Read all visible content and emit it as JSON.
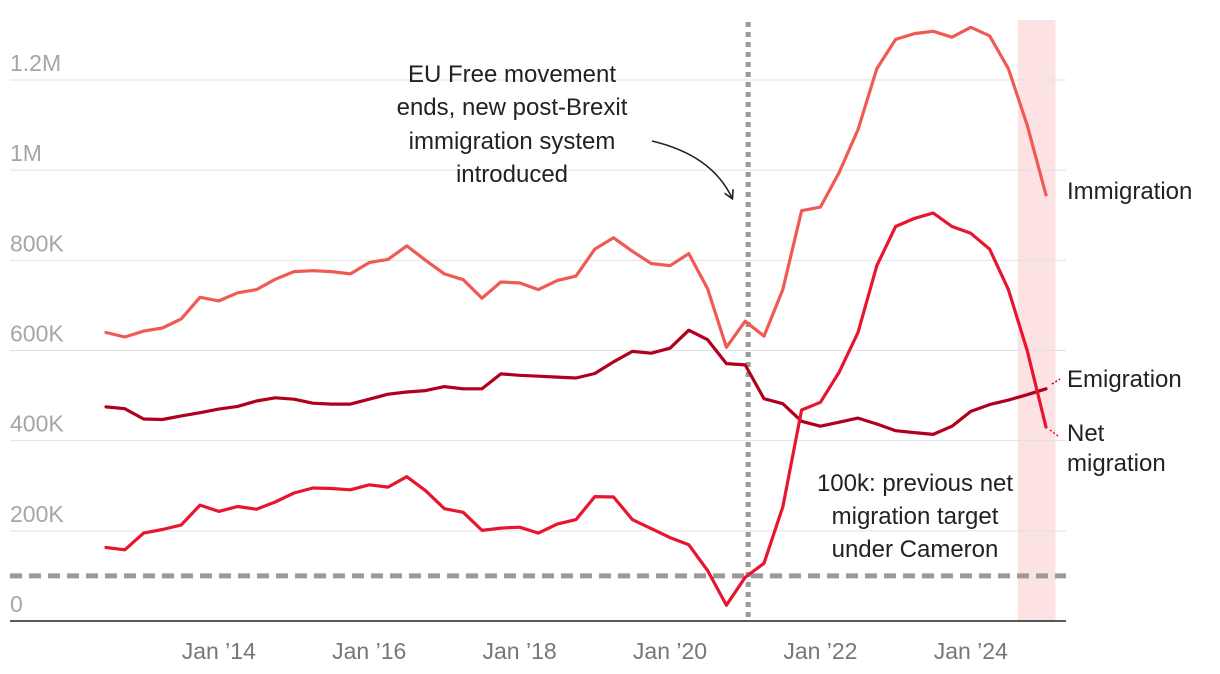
{
  "chart_data": {
    "type": "line",
    "title": "",
    "xlabel": "",
    "ylabel": "",
    "x_start": "Jun 2012",
    "x_step_months": 3,
    "ylim": [
      0,
      1300000
    ],
    "y_ticks": [
      {
        "value": 0,
        "label": "0"
      },
      {
        "value": 200000,
        "label": "200K"
      },
      {
        "value": 400000,
        "label": "400K"
      },
      {
        "value": 600000,
        "label": "600K"
      },
      {
        "value": 800000,
        "label": "800K"
      },
      {
        "value": 1000000,
        "label": "1M"
      },
      {
        "value": 1200000,
        "label": "1.2M"
      }
    ],
    "x_ticks": [
      {
        "index": 6,
        "label": "Jan ’14"
      },
      {
        "index": 14,
        "label": "Jan ’16"
      },
      {
        "index": 22,
        "label": "Jan ’18"
      },
      {
        "index": 30,
        "label": "Jan ’20"
      },
      {
        "index": 38,
        "label": "Jan ’22"
      },
      {
        "index": 46,
        "label": "Jan ’24"
      }
    ],
    "series": [
      {
        "name": "Immigration",
        "color": "#f05a55",
        "values": [
          640000,
          630000,
          643000,
          650000,
          670000,
          718000,
          710000,
          728000,
          735000,
          758000,
          775000,
          777000,
          775000,
          770000,
          795000,
          802000,
          832000,
          800000,
          770000,
          757000,
          716000,
          752000,
          750000,
          735000,
          755000,
          765000,
          825000,
          850000,
          820000,
          793000,
          788000,
          815000,
          737000,
          607000,
          665000,
          632000,
          735000,
          910000,
          918000,
          995000,
          1090000,
          1225000,
          1290000,
          1303000,
          1308000,
          1295000,
          1317000,
          1298000,
          1225000,
          1100000,
          945000
        ]
      },
      {
        "name": "Emigration",
        "color": "#b0001e",
        "values": [
          475000,
          471000,
          448000,
          447000,
          455000,
          462000,
          470000,
          476000,
          488000,
          495000,
          492000,
          483000,
          481000,
          481000,
          492000,
          503000,
          508000,
          511000,
          520000,
          515000,
          515000,
          548000,
          545000,
          543000,
          541000,
          539000,
          549000,
          575000,
          598000,
          594000,
          605000,
          645000,
          624000,
          571000,
          568000,
          493000,
          482000,
          443000,
          432000,
          441000,
          450000,
          437000,
          422000,
          418000,
          414000,
          432000,
          465000,
          480000,
          490000,
          502000,
          515000
        ]
      },
      {
        "name": "Net migration",
        "color": "#e8152f",
        "values": [
          163000,
          158000,
          195000,
          203000,
          213000,
          257000,
          243000,
          254000,
          248000,
          264000,
          284000,
          295000,
          294000,
          291000,
          302000,
          297000,
          320000,
          289000,
          249000,
          241000,
          201000,
          206000,
          208000,
          195000,
          215000,
          225000,
          276000,
          275000,
          225000,
          205000,
          185000,
          169000,
          112000,
          35000,
          97000,
          128000,
          253000,
          468000,
          485000,
          552000,
          640000,
          788000,
          875000,
          893000,
          905000,
          875000,
          860000,
          825000,
          735000,
          600000,
          430000
        ]
      }
    ],
    "series_labels": [
      {
        "series": "Immigration",
        "lines": [
          "Immigration"
        ]
      },
      {
        "series": "Emigration",
        "lines": [
          "Emigration"
        ]
      },
      {
        "series": "Net migration",
        "lines": [
          "Net",
          "migration"
        ]
      }
    ],
    "reference_lines": [
      {
        "orientation": "horizontal",
        "value": 100000,
        "style": "dashed",
        "color": "#9a9a9a"
      },
      {
        "orientation": "vertical",
        "at": "Jan 2021",
        "index": 34,
        "style": "dotted",
        "color": "#9a9a9a"
      }
    ],
    "highlight_band": {
      "from_index": 48.5,
      "to_index": 50.5,
      "color": "#fde2e4"
    },
    "annotations": [
      {
        "name": "brexit-annotation",
        "lines": [
          "EU Free movement",
          "ends, new post-Brexit",
          "immigration system",
          "introduced"
        ],
        "arrow": true
      },
      {
        "name": "cameron-target-annotation",
        "lines": [
          "100k: previous net",
          "migration target",
          "under Cameron"
        ],
        "arrow": false
      }
    ]
  }
}
